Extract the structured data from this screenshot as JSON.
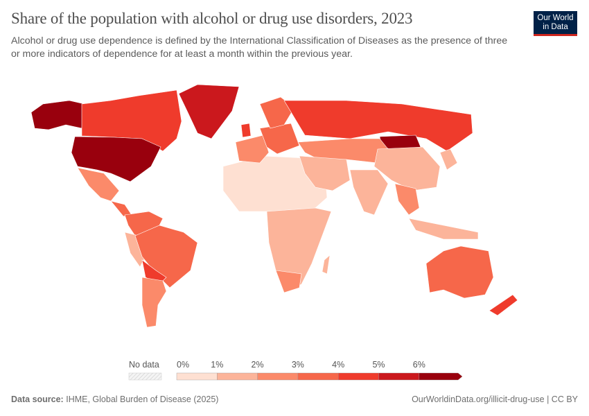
{
  "header": {
    "title": "Share of the population with alcohol or drug use disorders, 2023",
    "subtitle": "Alcohol or drug use dependence is defined by the International Classification of Diseases as the presence of three or more indicators of dependence for at least a month within the previous year.",
    "logo_line1": "Our World",
    "logo_line2": "in Data"
  },
  "legend": {
    "no_data_label": "No data",
    "ticks": [
      "0%",
      "1%",
      "2%",
      "3%",
      "4%",
      "5%",
      "6%"
    ],
    "colors": [
      "#fee0d2",
      "#fcb49a",
      "#fb8a6a",
      "#f6674a",
      "#ef3b2c",
      "#cb181d",
      "#99000d"
    ],
    "no_data_color": "#e8e8e8"
  },
  "footer": {
    "source_label": "Data source:",
    "source_text": "IHME, Global Burden of Disease (2025)",
    "link": "OurWorldinData.org/illicit-drug-use",
    "separator": "|",
    "license": "CC BY"
  }
}
